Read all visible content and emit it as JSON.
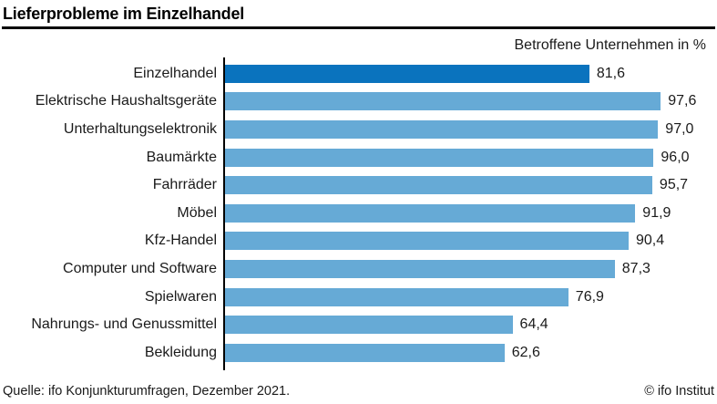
{
  "title": "Lieferprobleme im Einzelhandel",
  "subtitle": "Betroffene Unternehmen in %",
  "footer": {
    "source": "Quelle: ifo Konjunkturumfragen, Dezember 2021.",
    "copyright": "© ifo Institut"
  },
  "colors": {
    "highlight_bar": "#0a73be",
    "default_bar": "#66aad6",
    "axis": "#000000",
    "text": "#1a1a1a"
  },
  "chart_data": {
    "type": "bar",
    "orientation": "horizontal",
    "title": "Lieferprobleme im Einzelhandel",
    "subtitle": "Betroffene Unternehmen in %",
    "xlim": [
      0,
      100
    ],
    "grid": false,
    "legend": false,
    "highlight_index": 0,
    "categories": [
      "Einzelhandel",
      "Elektrische Haushaltsgeräte",
      "Unterhaltungselektronik",
      "Baumärkte",
      "Fahrräder",
      "Möbel",
      "Kfz-Handel",
      "Computer und Software",
      "Spielwaren",
      "Nahrungs- und Genussmittel",
      "Bekleidung"
    ],
    "values": [
      81.6,
      97.6,
      97.0,
      96.0,
      95.7,
      91.9,
      90.4,
      87.3,
      76.9,
      64.4,
      62.6
    ],
    "value_labels": [
      "81,6",
      "97,6",
      "97,0",
      "96,0",
      "95,7",
      "91,9",
      "90,4",
      "87,3",
      "76,9",
      "64,4",
      "62,6"
    ]
  }
}
